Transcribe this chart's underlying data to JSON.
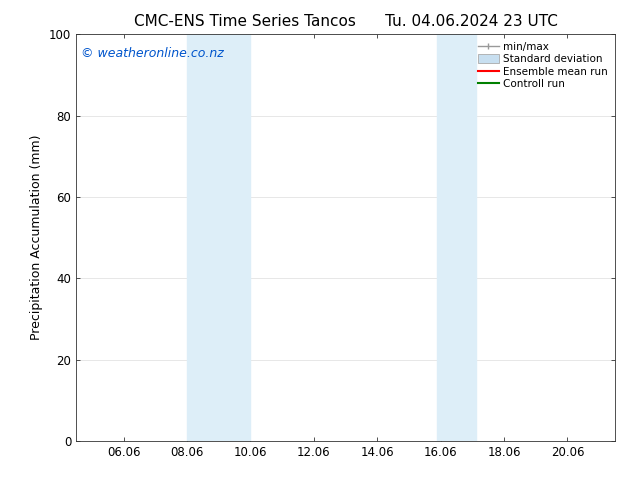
{
  "title_left": "CMC-ENS Time Series Tancos",
  "title_right": "Tu. 04.06.2024 23 UTC",
  "ylabel": "Precipitation Accumulation (mm)",
  "watermark": "© weatheronline.co.nz",
  "watermark_color": "#0055cc",
  "xlim_start": 4.5,
  "xlim_end": 21.5,
  "ylim": [
    0,
    100
  ],
  "yticks": [
    0,
    20,
    40,
    60,
    80,
    100
  ],
  "xtick_labels": [
    "06.06",
    "08.06",
    "10.06",
    "12.06",
    "14.06",
    "16.06",
    "18.06",
    "20.06"
  ],
  "xtick_positions": [
    6,
    8,
    10,
    12,
    14,
    16,
    18,
    20
  ],
  "shaded_bands": [
    {
      "x_start": 8.0,
      "x_end": 10.0,
      "color": "#ddeef8"
    },
    {
      "x_start": 15.9,
      "x_end": 17.1,
      "color": "#ddeef8"
    }
  ],
  "legend_items": [
    {
      "label": "min/max",
      "color": "#aaaaaa",
      "style": "errorbar"
    },
    {
      "label": "Standard deviation",
      "color": "#c8dff0",
      "style": "box"
    },
    {
      "label": "Ensemble mean run",
      "color": "#ff0000",
      "style": "line"
    },
    {
      "label": "Controll run",
      "color": "#008000",
      "style": "line"
    }
  ],
  "background_color": "#ffffff",
  "plot_bg_color": "#ffffff",
  "grid_color": "#dddddd",
  "title_fontsize": 11,
  "label_fontsize": 9,
  "tick_fontsize": 8.5,
  "watermark_fontsize": 9,
  "legend_fontsize": 7.5
}
